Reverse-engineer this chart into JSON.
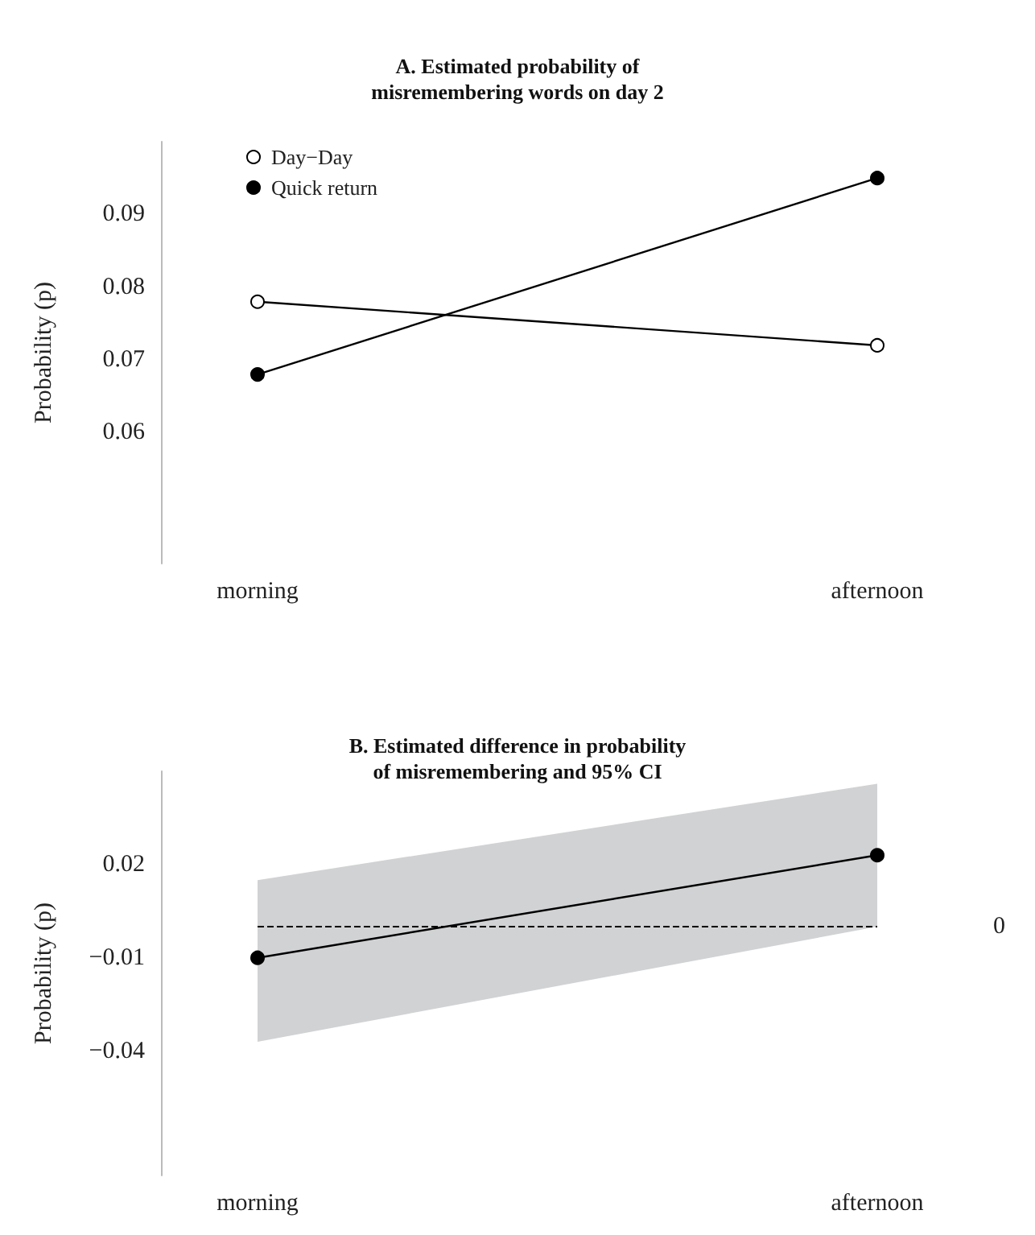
{
  "chart_data": [
    {
      "type": "line",
      "title": "A. Estimated probability of\nmisremembering words on day 2",
      "ylabel": "Probability (p)",
      "categories": [
        "morning",
        "afternoon"
      ],
      "series": [
        {
          "name": "Day−Day",
          "color": "#ffffff",
          "values": [
            0.078,
            0.072
          ]
        },
        {
          "name": "Quick return",
          "color": "#000000",
          "values": [
            0.068,
            0.095
          ]
        }
      ],
      "ylim": [
        0.042,
        0.1
      ],
      "yticks": [
        0.06,
        0.07,
        0.08,
        0.09
      ],
      "legend": "top left",
      "marker": "circle",
      "line_style": "solid",
      "grid": false
    },
    {
      "type": "line",
      "title": "B. Estimated difference in probability\nof misremembering and 95% CI",
      "ylabel": "Probability (p)",
      "categories": [
        "morning",
        "afternoon"
      ],
      "series": [
        {
          "color": "#000000",
          "values": [
            -0.01,
            0.023
          ],
          "lower": [
            -0.037,
            0.0
          ],
          "upper": [
            0.015,
            0.046
          ]
        }
      ],
      "ylim": [
        -0.08,
        0.05
      ],
      "yticks": [
        0.02,
        -0.01,
        -0.04
      ],
      "ref_lines": [
        {
          "axis": "y",
          "value": 0,
          "label": "0",
          "color": "#000000",
          "line_style": "dashed"
        }
      ],
      "marker": "circle",
      "line_style": "solid",
      "grid": false
    }
  ]
}
